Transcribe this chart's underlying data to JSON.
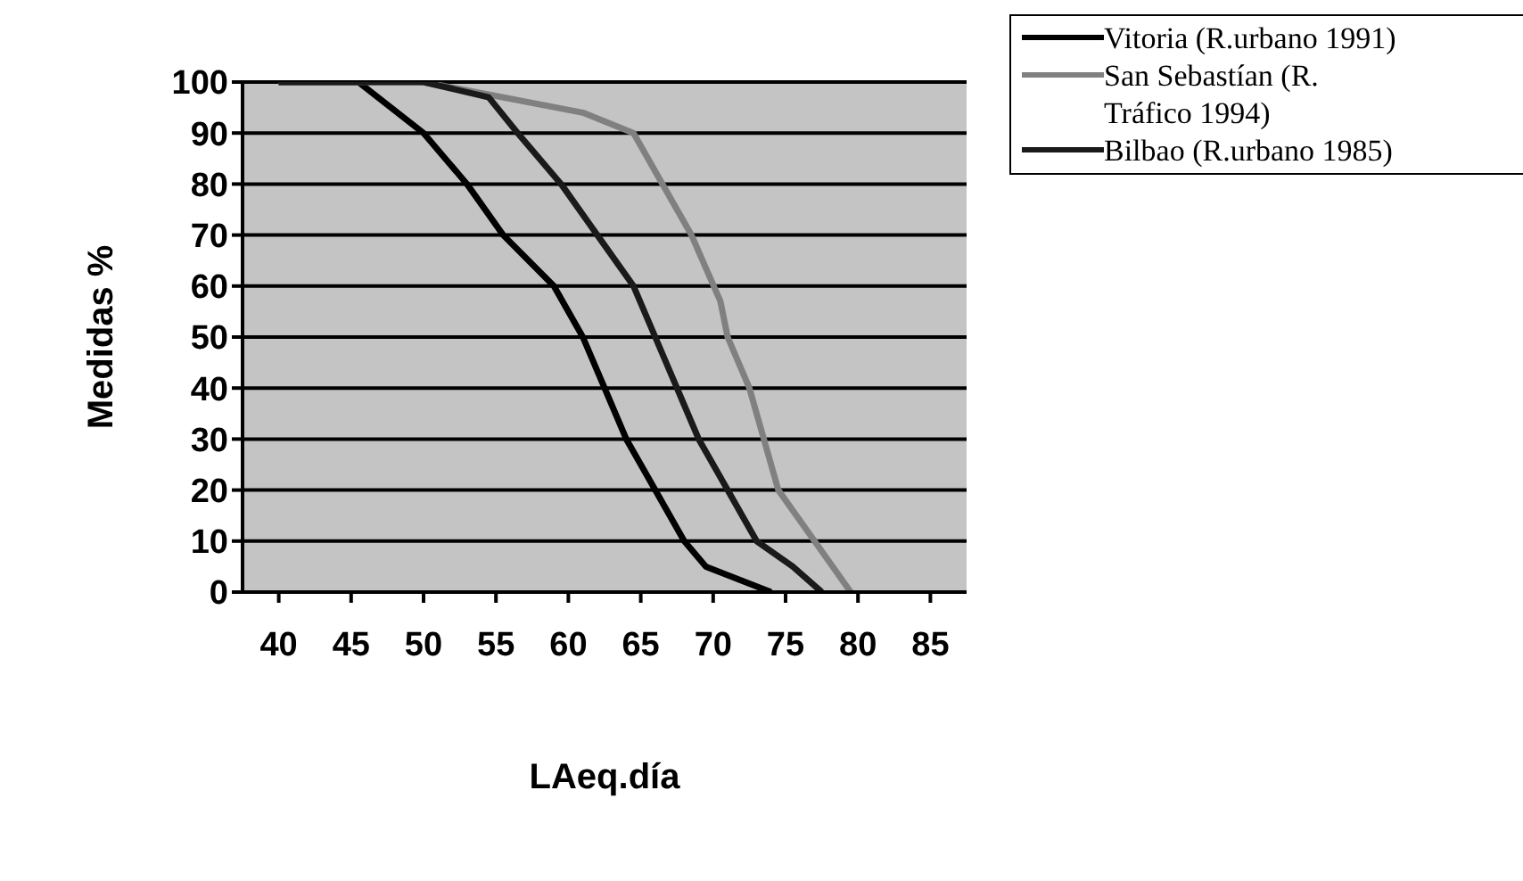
{
  "chart_data": {
    "type": "line",
    "xlabel": "LAeq.día",
    "ylabel": "Medidas %",
    "xlim": [
      37.5,
      87.5
    ],
    "xticks": [
      40,
      45,
      50,
      55,
      60,
      65,
      70,
      75,
      80,
      85
    ],
    "ylim": [
      0,
      100
    ],
    "yticks": [
      0,
      10,
      20,
      30,
      40,
      50,
      60,
      70,
      80,
      90,
      100
    ],
    "grid": "y",
    "legend": "top right",
    "marker": "none",
    "line_style": "solid",
    "series": [
      {
        "name": "Vitoria (R.urbano 1991)",
        "color": "#000000",
        "x": [
          40,
          45.5,
          50,
          53,
          55.5,
          59,
          61,
          62.5,
          64,
          66,
          68,
          69.5,
          74
        ],
        "values": [
          100,
          100,
          90,
          80,
          70,
          60,
          50,
          40,
          30,
          20,
          10,
          5,
          0
        ]
      },
      {
        "name": "San Sebastían (R. Tráfico 1994)",
        "color": "#808080",
        "x": [
          40,
          50,
          61,
          64.5,
          66.5,
          68.5,
          70.5,
          71,
          72.5,
          73.5,
          74.5,
          77,
          79.5
        ],
        "values": [
          100,
          100,
          94,
          90,
          80,
          70,
          57,
          50,
          40,
          30,
          20,
          10,
          0
        ]
      },
      {
        "name": "Bilbao (R.urbano 1985)",
        "color": "#1a1a1a",
        "x": [
          40,
          50,
          54.5,
          56.5,
          59.5,
          62,
          64.5,
          66,
          67.5,
          69,
          71,
          73,
          75.5,
          77.5
        ],
        "values": [
          100,
          100,
          97,
          90,
          80,
          70,
          60,
          50,
          40,
          30,
          20,
          10,
          5,
          0
        ]
      }
    ]
  }
}
